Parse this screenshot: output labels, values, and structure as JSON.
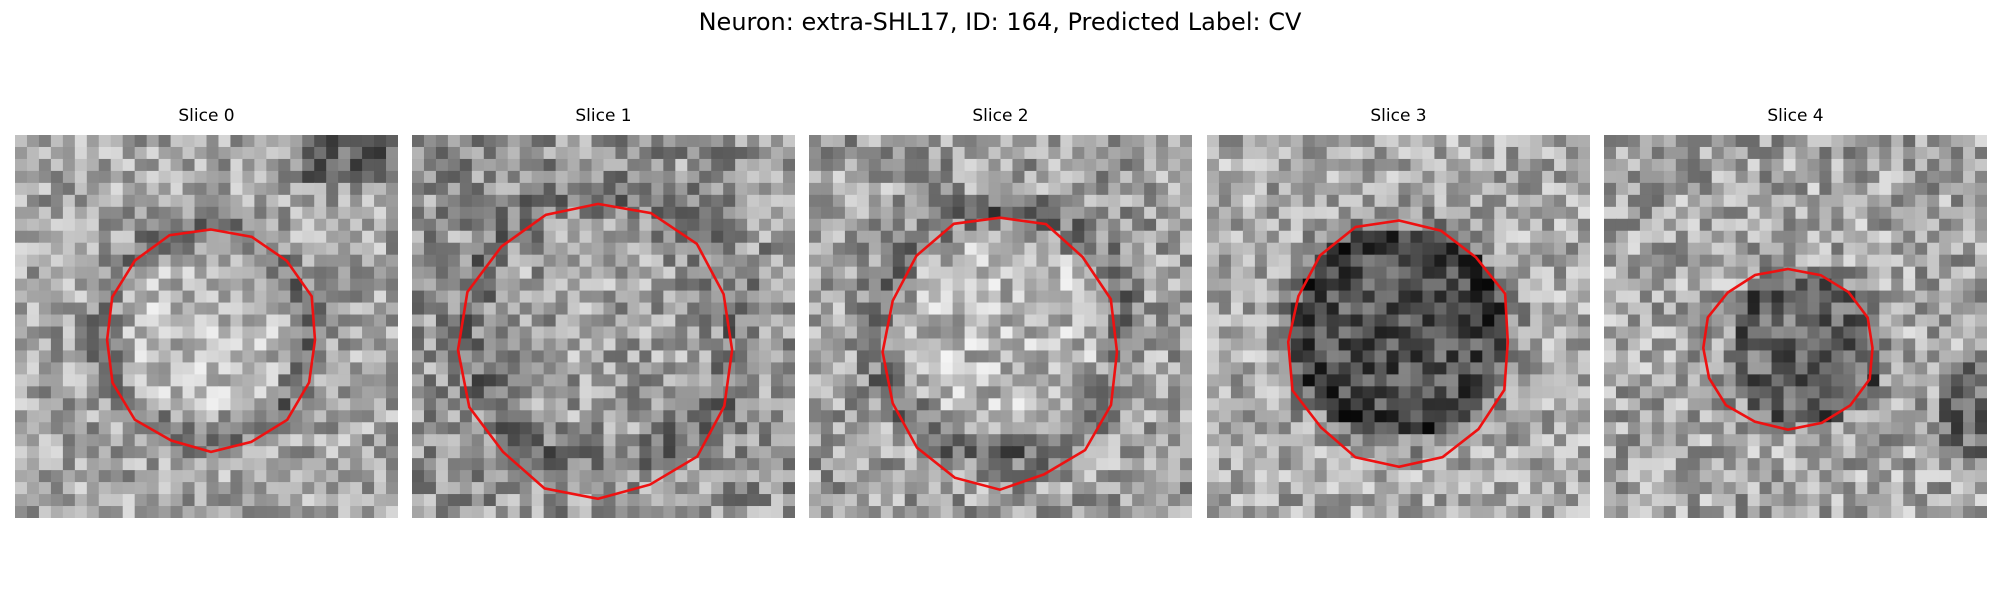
{
  "figure": {
    "title": "Neuron: extra-SHL17, ID: 164, Predicted Label: CV"
  },
  "colors": {
    "contour": "#ee1111",
    "colormap": "grayscale"
  },
  "panels": [
    {
      "title": "Slice 0",
      "tone": "light ring-darkened membrane"
    },
    {
      "title": "Slice 1",
      "tone": "mid-gray speckled"
    },
    {
      "title": "Slice 2",
      "tone": "light with dark rim"
    },
    {
      "title": "Slice 3",
      "tone": "dark filled soma"
    },
    {
      "title": "Slice 4",
      "tone": "small dark core"
    }
  ]
}
